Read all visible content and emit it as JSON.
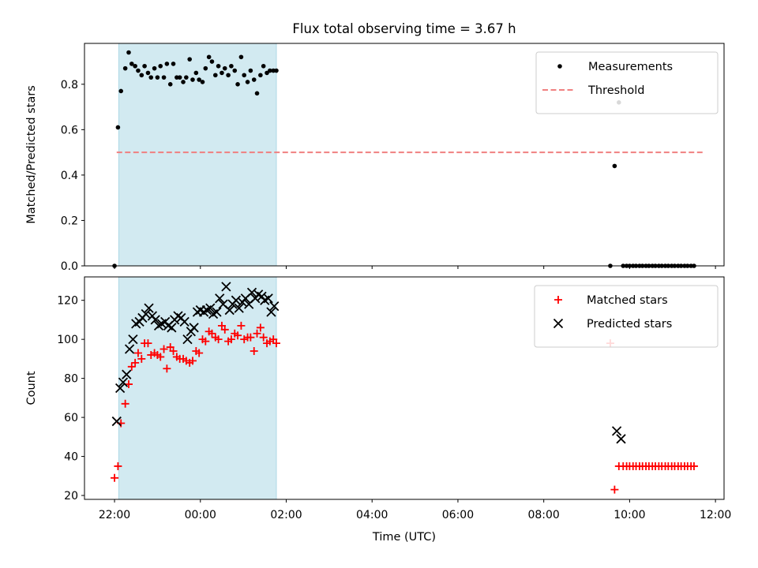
{
  "figure": {
    "title": "Flux total observing time = 3.67 h"
  },
  "chart_data": [
    {
      "type": "scatter",
      "title": "Flux total observing time = 3.67 h",
      "xlabel": "",
      "ylabel": "Matched/Predicted stars",
      "x_unit": "hours relative to 00:00 UTC",
      "xlim": [
        -2.7,
        12.2
      ],
      "ylim": [
        0,
        0.98
      ],
      "yticks": [
        0.0,
        0.2,
        0.4,
        0.6,
        0.8
      ],
      "ytick_labels": [
        "0.0",
        "0.2",
        "0.4",
        "0.6",
        "0.8"
      ],
      "xticks": [
        -2,
        0,
        2,
        4,
        6,
        8,
        10,
        12
      ],
      "xtick_labels": [],
      "shaded_region": {
        "x_start": -1.9,
        "x_end": 1.77,
        "color": "#add8e6"
      },
      "legend_position": "upper right",
      "grid": false,
      "series": [
        {
          "name": "Measurements",
          "marker": "dot",
          "color": "#000000",
          "x": [
            -2.0,
            -1.92,
            -1.85,
            -1.75,
            -1.67,
            -1.6,
            -1.52,
            -1.45,
            -1.37,
            -1.3,
            -1.22,
            -1.15,
            -1.07,
            -1.0,
            -0.93,
            -0.85,
            -0.78,
            -0.7,
            -0.63,
            -0.55,
            -0.48,
            -0.4,
            -0.33,
            -0.25,
            -0.18,
            -0.1,
            -0.03,
            0.05,
            0.12,
            0.2,
            0.27,
            0.35,
            0.42,
            0.5,
            0.57,
            0.65,
            0.72,
            0.8,
            0.87,
            0.95,
            1.02,
            1.1,
            1.17,
            1.25,
            1.32,
            1.4,
            1.47,
            1.55,
            1.62,
            1.7,
            1.77,
            9.55,
            9.65,
            9.75,
            9.85,
            9.93,
            10.0,
            10.08,
            10.15,
            10.23,
            10.3,
            10.38,
            10.45,
            10.53,
            10.6,
            10.68,
            10.75,
            10.83,
            10.9,
            10.98,
            11.05,
            11.13,
            11.2,
            11.28,
            11.35,
            11.43,
            11.5
          ],
          "y": [
            0.0,
            0.61,
            0.77,
            0.87,
            0.94,
            0.89,
            0.88,
            0.86,
            0.84,
            0.88,
            0.85,
            0.83,
            0.87,
            0.83,
            0.88,
            0.83,
            0.89,
            0.8,
            0.89,
            0.83,
            0.83,
            0.81,
            0.83,
            0.91,
            0.82,
            0.85,
            0.82,
            0.81,
            0.87,
            0.92,
            0.9,
            0.84,
            0.88,
            0.85,
            0.87,
            0.84,
            0.88,
            0.86,
            0.8,
            0.92,
            0.84,
            0.81,
            0.86,
            0.82,
            0.76,
            0.84,
            0.88,
            0.85,
            0.86,
            0.86,
            0.86,
            0.0,
            0.44,
            0.72,
            0.0,
            0.0,
            0.0,
            0.0,
            0.0,
            0.0,
            0.0,
            0.0,
            0.0,
            0.0,
            0.0,
            0.0,
            0.0,
            0.0,
            0.0,
            0.0,
            0.0,
            0.0,
            0.0,
            0.0,
            0.0,
            0.0,
            0.0
          ]
        },
        {
          "name": "Threshold",
          "line": "dashed",
          "color": "#f08080",
          "x": [
            -1.95,
            11.7
          ],
          "y": [
            0.5,
            0.5
          ]
        }
      ]
    },
    {
      "type": "scatter",
      "title": "",
      "xlabel": "Time (UTC)",
      "ylabel": "Count",
      "x_unit": "hours relative to 00:00 UTC",
      "xlim": [
        -2.7,
        12.2
      ],
      "ylim": [
        18,
        132
      ],
      "yticks": [
        20,
        40,
        60,
        80,
        100,
        120
      ],
      "ytick_labels": [
        "20",
        "40",
        "60",
        "80",
        "100",
        "120"
      ],
      "xticks": [
        -2,
        0,
        2,
        4,
        6,
        8,
        10,
        12
      ],
      "xtick_labels": [
        "22:00",
        "00:00",
        "02:00",
        "04:00",
        "06:00",
        "08:00",
        "10:00",
        "12:00"
      ],
      "shaded_region": {
        "x_start": -1.9,
        "x_end": 1.77,
        "color": "#add8e6"
      },
      "legend_position": "upper right",
      "grid": false,
      "series": [
        {
          "name": "Matched stars",
          "marker": "plus",
          "color": "#ff0000",
          "x": [
            -2.0,
            -1.92,
            -1.85,
            -1.75,
            -1.67,
            -1.6,
            -1.52,
            -1.45,
            -1.37,
            -1.3,
            -1.22,
            -1.15,
            -1.07,
            -1.0,
            -0.93,
            -0.85,
            -0.78,
            -0.7,
            -0.63,
            -0.55,
            -0.48,
            -0.4,
            -0.33,
            -0.25,
            -0.18,
            -0.1,
            -0.03,
            0.05,
            0.12,
            0.2,
            0.27,
            0.35,
            0.42,
            0.5,
            0.57,
            0.65,
            0.72,
            0.8,
            0.87,
            0.95,
            1.02,
            1.1,
            1.17,
            1.25,
            1.32,
            1.4,
            1.47,
            1.55,
            1.62,
            1.7,
            1.77,
            9.55,
            9.65,
            9.75,
            9.85,
            9.93,
            10.0,
            10.08,
            10.15,
            10.23,
            10.3,
            10.38,
            10.45,
            10.53,
            10.6,
            10.68,
            10.75,
            10.83,
            10.9,
            10.98,
            11.05,
            11.13,
            11.2,
            11.28,
            11.35,
            11.43,
            11.5
          ],
          "y": [
            29,
            35,
            57,
            67,
            77,
            86,
            88,
            93,
            90,
            98,
            98,
            92,
            93,
            92,
            91,
            95,
            85,
            96,
            94,
            91,
            90,
            90,
            89,
            88,
            89,
            94,
            93,
            100,
            99,
            104,
            103,
            101,
            100,
            107,
            105,
            99,
            100,
            103,
            102,
            107,
            100,
            101,
            101,
            94,
            103,
            106,
            101,
            98,
            99,
            100,
            98,
            98,
            23,
            35,
            35,
            35,
            35,
            35,
            35,
            35,
            35,
            35,
            35,
            35,
            35,
            35,
            35,
            35,
            35,
            35,
            35,
            35,
            35,
            35,
            35,
            35,
            35
          ]
        },
        {
          "name": "Predicted stars",
          "marker": "x",
          "color": "#000000",
          "x": [
            -1.95,
            -1.87,
            -1.8,
            -1.72,
            -1.65,
            -1.57,
            -1.5,
            -1.42,
            -1.35,
            -1.27,
            -1.2,
            -1.12,
            -1.05,
            -0.97,
            -0.9,
            -0.82,
            -0.75,
            -0.67,
            -0.6,
            -0.52,
            -0.45,
            -0.37,
            -0.3,
            -0.22,
            -0.15,
            -0.07,
            0.0,
            0.08,
            0.15,
            0.23,
            0.3,
            0.38,
            0.45,
            0.53,
            0.6,
            0.68,
            0.75,
            0.83,
            0.9,
            0.98,
            1.05,
            1.13,
            1.2,
            1.28,
            1.35,
            1.43,
            1.5,
            1.58,
            1.65,
            1.72,
            9.7,
            9.8
          ],
          "y": [
            58,
            75,
            78,
            82,
            95,
            100,
            108,
            109,
            111,
            113,
            116,
            112,
            110,
            107,
            108,
            109,
            107,
            106,
            110,
            112,
            111,
            109,
            100,
            104,
            106,
            114,
            115,
            114,
            115,
            116,
            113,
            114,
            121,
            118,
            127,
            115,
            118,
            120,
            116,
            119,
            121,
            118,
            124,
            121,
            123,
            122,
            120,
            121,
            114,
            117,
            53,
            49
          ]
        }
      ]
    }
  ]
}
